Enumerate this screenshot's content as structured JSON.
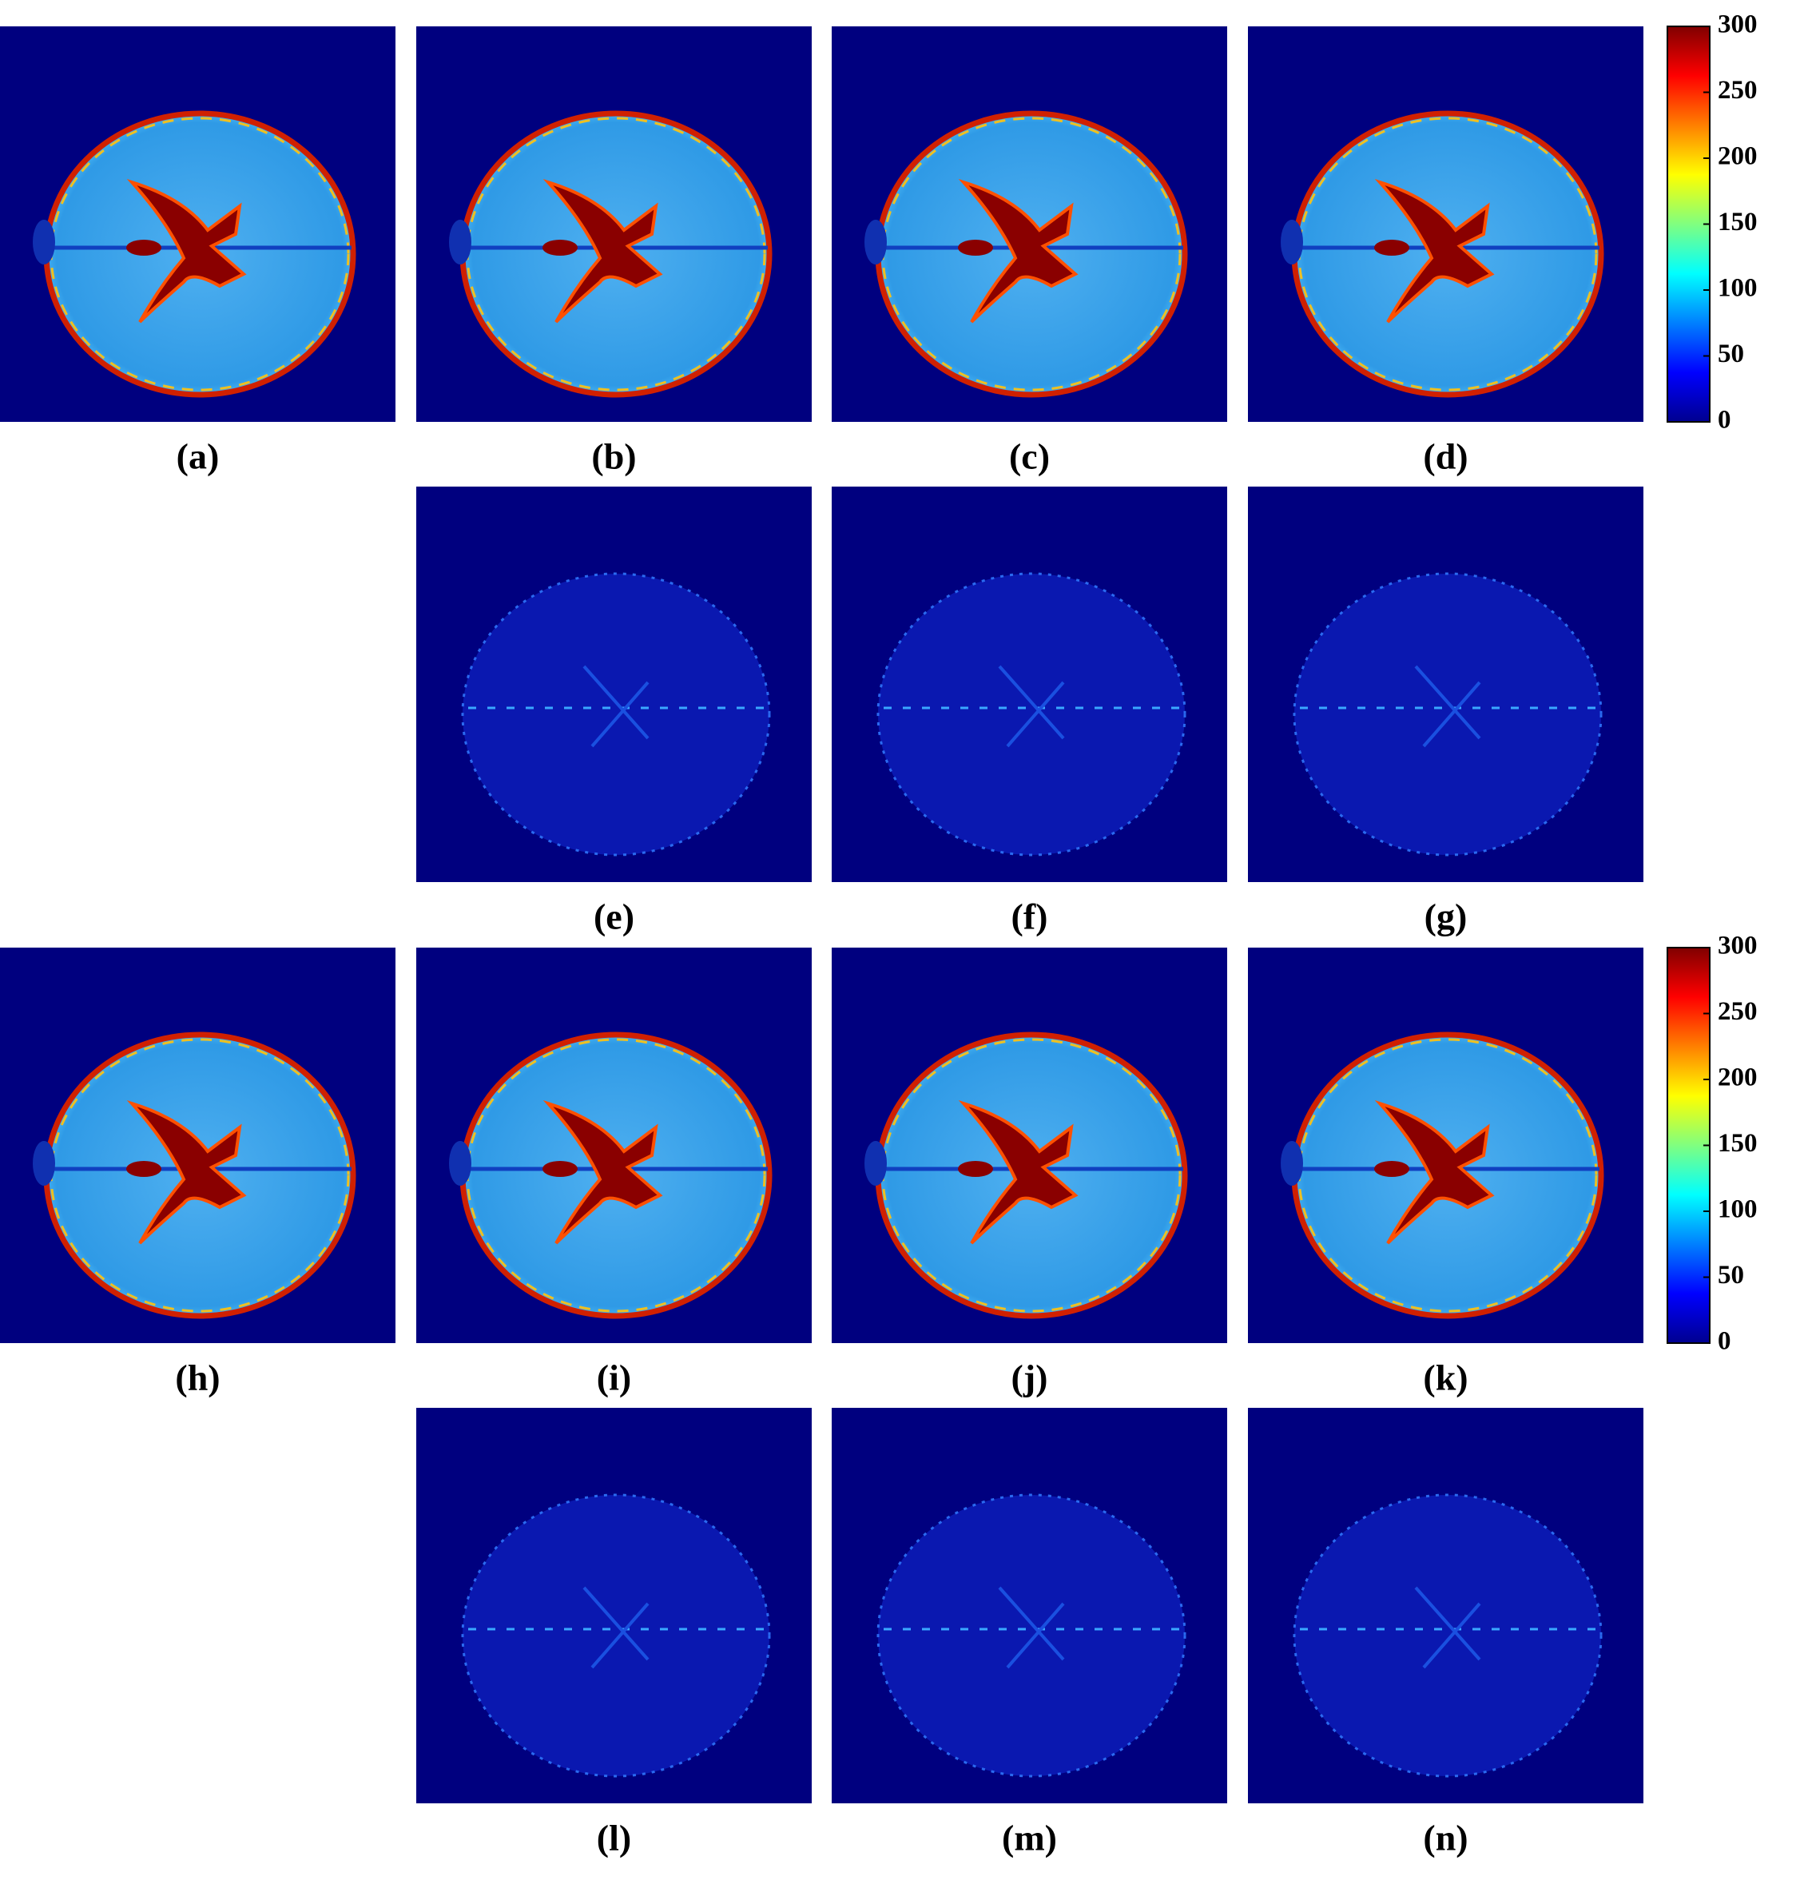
{
  "panels": [
    {
      "label": "(a)"
    },
    {
      "label": "(b)"
    },
    {
      "label": "(c)"
    },
    {
      "label": "(d)"
    },
    {
      "label": "(e)"
    },
    {
      "label": "(f)"
    },
    {
      "label": "(g)"
    },
    {
      "label": "(h)"
    },
    {
      "label": "(i)"
    },
    {
      "label": "(j)"
    },
    {
      "label": "(k)"
    },
    {
      "label": "(l)"
    },
    {
      "label": "(m)"
    },
    {
      "label": "(n)"
    }
  ],
  "colorbars": [
    {
      "lim": [
        0,
        300
      ],
      "ticks": [
        0,
        50,
        100,
        150,
        200,
        250,
        300
      ]
    },
    {
      "lim": [
        0,
        300
      ],
      "ticks": [
        0,
        50,
        100,
        150,
        200,
        250,
        300
      ]
    }
  ]
}
